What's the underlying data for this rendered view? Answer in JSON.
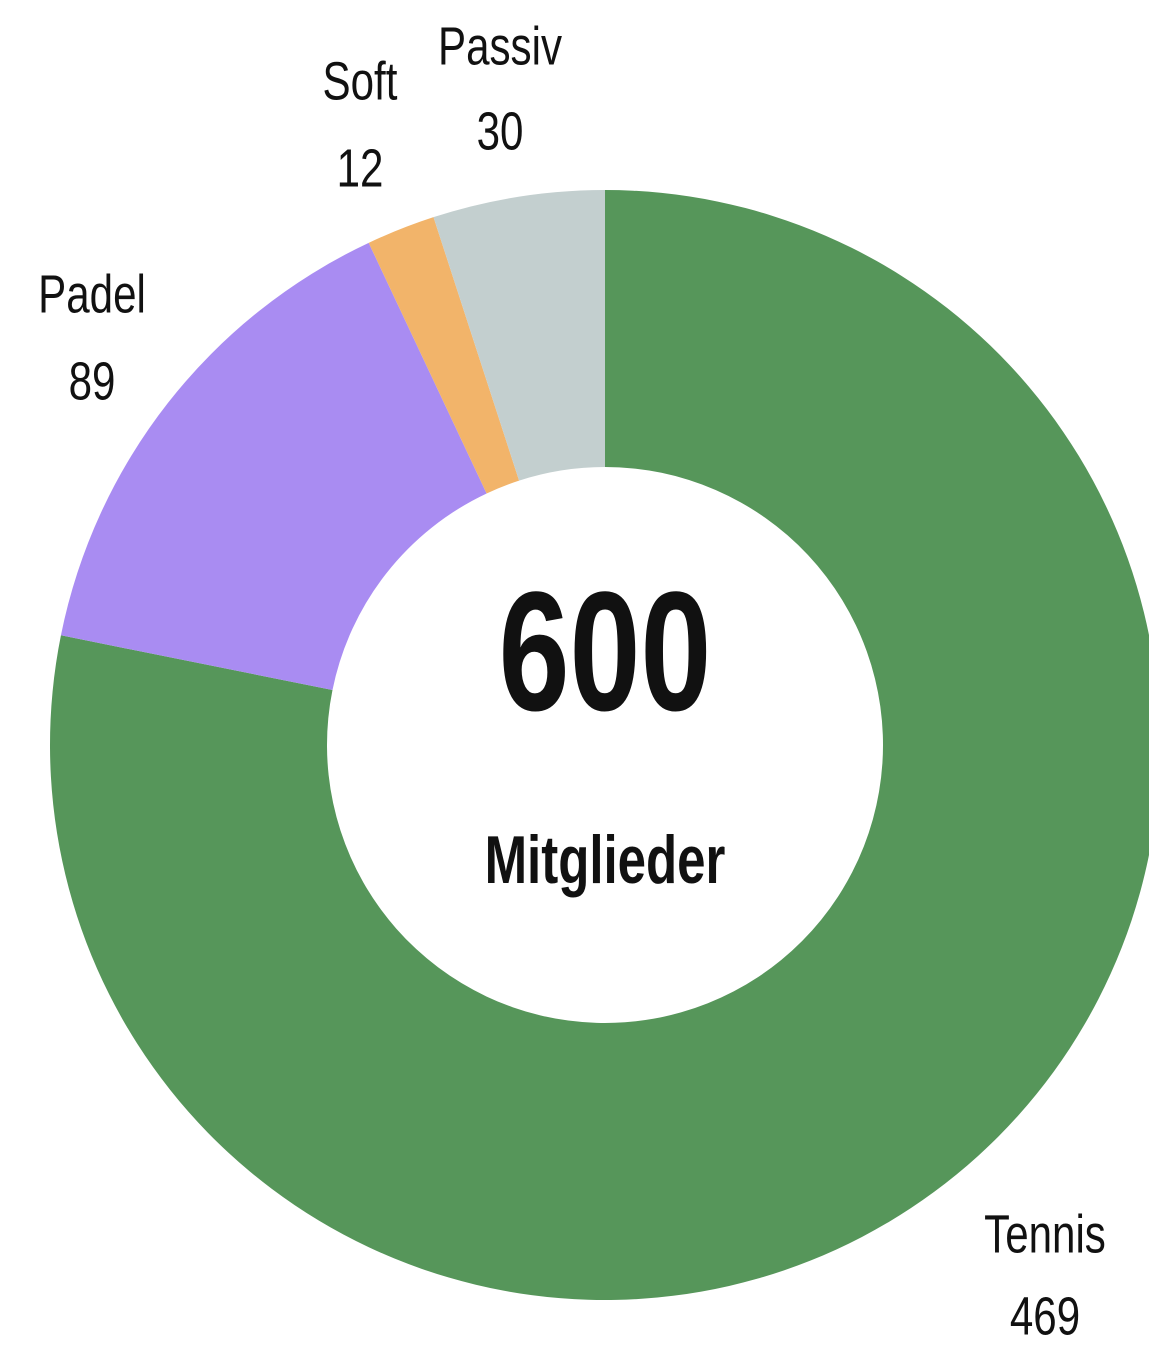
{
  "chart_data": {
    "type": "donut",
    "categories": [
      "Tennis",
      "Padel",
      "Soft",
      "Passiv"
    ],
    "values": [
      469,
      89,
      12,
      30
    ],
    "colors": [
      "#56965a",
      "#a98cf2",
      "#f2b46a",
      "#c3cfcf"
    ],
    "center_value": 600,
    "center_label": "Mitglieder"
  }
}
